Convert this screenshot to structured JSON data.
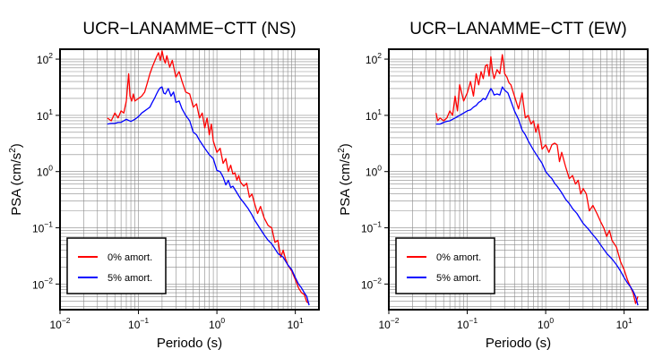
{
  "chart_data": [
    {
      "type": "line",
      "title": "UCR−LANAMME−CTT (NS)",
      "xlabel": "Periodo (s)",
      "ylabel": "PSA (cm/s²)",
      "ylabel_parts": [
        "PSA (cm/s",
        "2",
        ")"
      ],
      "xscale": "log",
      "yscale": "log",
      "xlim": [
        0.01,
        20
      ],
      "ylim": [
        0.0035,
        150
      ],
      "xticks": [
        {
          "base": "10",
          "exp": "−2",
          "value": 0.01
        },
        {
          "base": "10",
          "exp": "−1",
          "value": 0.1
        },
        {
          "base": "10",
          "exp": "0",
          "value": 1
        },
        {
          "base": "10",
          "exp": "1",
          "value": 10
        }
      ],
      "yticks": [
        {
          "base": "10",
          "exp": "−2",
          "value": 0.01
        },
        {
          "base": "10",
          "exp": "−1",
          "value": 0.1
        },
        {
          "base": "10",
          "exp": "0",
          "value": 1
        },
        {
          "base": "10",
          "exp": "1",
          "value": 10
        },
        {
          "base": "10",
          "exp": "2",
          "value": 100
        }
      ],
      "grid": true,
      "legend_position": "bottom-left",
      "series": [
        {
          "name": "0% amort.",
          "color": "#ff0000",
          "x": [
            0.04,
            0.045,
            0.05,
            0.055,
            0.06,
            0.065,
            0.07,
            0.075,
            0.078,
            0.082,
            0.086,
            0.09,
            0.1,
            0.11,
            0.12,
            0.13,
            0.14,
            0.15,
            0.16,
            0.17,
            0.18,
            0.19,
            0.2,
            0.21,
            0.22,
            0.23,
            0.25,
            0.27,
            0.3,
            0.33,
            0.36,
            0.4,
            0.45,
            0.5,
            0.55,
            0.6,
            0.65,
            0.7,
            0.75,
            0.8,
            0.85,
            0.9,
            1.0,
            1.1,
            1.2,
            1.3,
            1.4,
            1.5,
            1.6,
            1.7,
            1.8,
            1.9,
            2.0,
            2.2,
            2.4,
            2.6,
            2.8,
            3.0,
            3.3,
            3.6,
            4.0,
            4.5,
            5.0,
            5.5,
            6.0,
            6.5,
            7.0,
            7.5,
            8.0,
            9.0,
            10.0,
            11.0,
            12.0,
            13.0,
            14.0,
            15.0
          ],
          "y": [
            9,
            8,
            11,
            9,
            12,
            11,
            18,
            55,
            22,
            18,
            24,
            18,
            20,
            22,
            26,
            38,
            55,
            72,
            90,
            110,
            130,
            95,
            140,
            100,
            85,
            115,
            72,
            95,
            48,
            60,
            40,
            26,
            24,
            14,
            16,
            9,
            11,
            6,
            9,
            4.5,
            7,
            3.5,
            2.2,
            2.6,
            1.4,
            1.7,
            1.0,
            1.3,
            0.9,
            0.95,
            0.7,
            0.85,
            0.65,
            0.55,
            0.62,
            0.35,
            0.4,
            0.28,
            0.18,
            0.24,
            0.15,
            0.11,
            0.1,
            0.055,
            0.06,
            0.03,
            0.04,
            0.028,
            0.022,
            0.017,
            0.012,
            0.0085,
            0.007,
            0.0065,
            0.0048,
            0.0045
          ]
        },
        {
          "name": "5% amort.",
          "color": "#0000ff",
          "x": [
            0.04,
            0.045,
            0.05,
            0.055,
            0.06,
            0.065,
            0.07,
            0.08,
            0.09,
            0.1,
            0.11,
            0.12,
            0.13,
            0.14,
            0.15,
            0.16,
            0.17,
            0.18,
            0.19,
            0.2,
            0.21,
            0.22,
            0.24,
            0.26,
            0.28,
            0.3,
            0.33,
            0.36,
            0.4,
            0.45,
            0.5,
            0.55,
            0.6,
            0.7,
            0.8,
            0.9,
            1.0,
            1.1,
            1.2,
            1.3,
            1.4,
            1.5,
            1.6,
            1.8,
            2.0,
            2.2,
            2.5,
            2.8,
            3.0,
            3.5,
            4.0,
            4.5,
            5.0,
            6.0,
            7.0,
            8.0,
            9.0,
            10.0,
            11.0,
            12.0,
            13.0,
            14.0,
            15.0
          ],
          "y": [
            7,
            7.2,
            7.2,
            7.5,
            7.5,
            8,
            8.5,
            7.8,
            8.5,
            9.5,
            11,
            12,
            13,
            14,
            17,
            20,
            24,
            28,
            31,
            32,
            25,
            24,
            30,
            22,
            26,
            17,
            18,
            13,
            10,
            8,
            5,
            4.5,
            3.6,
            2.6,
            2,
            1.7,
            1.05,
            1.0,
            0.8,
            0.58,
            0.7,
            0.52,
            0.55,
            0.42,
            0.33,
            0.28,
            0.22,
            0.17,
            0.14,
            0.1,
            0.075,
            0.06,
            0.052,
            0.035,
            0.03,
            0.022,
            0.018,
            0.013,
            0.01,
            0.0085,
            0.007,
            0.006,
            0.0042
          ]
        }
      ]
    },
    {
      "type": "line",
      "title": "UCR−LANAMME−CTT (EW)",
      "xlabel": "Periodo (s)",
      "ylabel": "PSA (cm/s²)",
      "ylabel_parts": [
        "PSA (cm/s",
        "2",
        ")"
      ],
      "xscale": "log",
      "yscale": "log",
      "xlim": [
        0.01,
        20
      ],
      "ylim": [
        0.0035,
        150
      ],
      "xticks": [
        {
          "base": "10",
          "exp": "−2",
          "value": 0.01
        },
        {
          "base": "10",
          "exp": "−1",
          "value": 0.1
        },
        {
          "base": "10",
          "exp": "0",
          "value": 1
        },
        {
          "base": "10",
          "exp": "1",
          "value": 10
        }
      ],
      "yticks": [
        {
          "base": "10",
          "exp": "−2",
          "value": 0.01
        },
        {
          "base": "10",
          "exp": "−1",
          "value": 0.1
        },
        {
          "base": "10",
          "exp": "0",
          "value": 1
        },
        {
          "base": "10",
          "exp": "1",
          "value": 10
        },
        {
          "base": "10",
          "exp": "2",
          "value": 100
        }
      ],
      "grid": true,
      "legend_position": "bottom-left",
      "series": [
        {
          "name": "0% amort.",
          "color": "#ff0000",
          "x": [
            0.04,
            0.042,
            0.045,
            0.05,
            0.055,
            0.06,
            0.065,
            0.07,
            0.075,
            0.08,
            0.09,
            0.1,
            0.11,
            0.12,
            0.13,
            0.14,
            0.15,
            0.16,
            0.17,
            0.18,
            0.19,
            0.2,
            0.21,
            0.22,
            0.24,
            0.26,
            0.28,
            0.29,
            0.3,
            0.32,
            0.34,
            0.36,
            0.4,
            0.45,
            0.5,
            0.55,
            0.6,
            0.65,
            0.7,
            0.75,
            0.8,
            0.9,
            1.0,
            1.1,
            1.2,
            1.3,
            1.4,
            1.5,
            1.6,
            1.8,
            2.0,
            2.2,
            2.4,
            2.6,
            2.8,
            3.0,
            3.3,
            3.6,
            4.0,
            4.5,
            5.0,
            5.5,
            6.0,
            6.5,
            7.0,
            8.0,
            9.0,
            10.0,
            11.0,
            12.0,
            13.0,
            14.0,
            15.0
          ],
          "y": [
            11,
            8,
            9,
            8,
            9,
            12,
            10,
            22,
            12,
            35,
            18,
            25,
            40,
            22,
            55,
            35,
            60,
            45,
            75,
            80,
            50,
            110,
            60,
            45,
            65,
            55,
            120,
            85,
            55,
            48,
            38,
            35,
            22,
            13,
            25,
            9,
            10,
            7,
            8,
            5,
            7,
            2.5,
            3,
            2.2,
            3,
            3.2,
            3.0,
            1.5,
            2.2,
            1.2,
            0.75,
            0.85,
            0.6,
            0.7,
            0.4,
            0.5,
            0.4,
            0.2,
            0.25,
            0.18,
            0.13,
            0.1,
            0.07,
            0.09,
            0.06,
            0.045,
            0.025,
            0.018,
            0.012,
            0.009,
            0.007,
            0.0045,
            0.006
          ]
        },
        {
          "name": "5% amort.",
          "color": "#0000ff",
          "x": [
            0.04,
            0.045,
            0.05,
            0.055,
            0.06,
            0.065,
            0.07,
            0.08,
            0.09,
            0.1,
            0.11,
            0.12,
            0.13,
            0.14,
            0.15,
            0.16,
            0.17,
            0.18,
            0.19,
            0.2,
            0.21,
            0.22,
            0.24,
            0.26,
            0.28,
            0.3,
            0.33,
            0.36,
            0.4,
            0.45,
            0.5,
            0.55,
            0.6,
            0.7,
            0.8,
            0.9,
            1.0,
            1.1,
            1.2,
            1.3,
            1.4,
            1.5,
            1.6,
            1.8,
            2.0,
            2.2,
            2.5,
            2.8,
            3.0,
            3.5,
            4.0,
            4.5,
            5.0,
            6.0,
            7.0,
            8.0,
            9.0,
            10.0,
            11.0,
            12.0,
            13.0,
            14.0,
            15.0
          ],
          "y": [
            7,
            7,
            7.5,
            7.8,
            8,
            8.5,
            9,
            10,
            11,
            12,
            12.5,
            14,
            15,
            17,
            18,
            20,
            19,
            22,
            26,
            30,
            27,
            23,
            24,
            23,
            32,
            28,
            25,
            18,
            12,
            8.5,
            5.5,
            4.5,
            3.5,
            2.4,
            1.8,
            1.4,
            1.0,
            0.85,
            0.75,
            0.62,
            0.55,
            0.48,
            0.42,
            0.32,
            0.27,
            0.22,
            0.18,
            0.14,
            0.12,
            0.095,
            0.075,
            0.062,
            0.05,
            0.035,
            0.028,
            0.022,
            0.017,
            0.013,
            0.0105,
            0.009,
            0.0075,
            0.006,
            0.0042
          ]
        }
      ]
    }
  ]
}
